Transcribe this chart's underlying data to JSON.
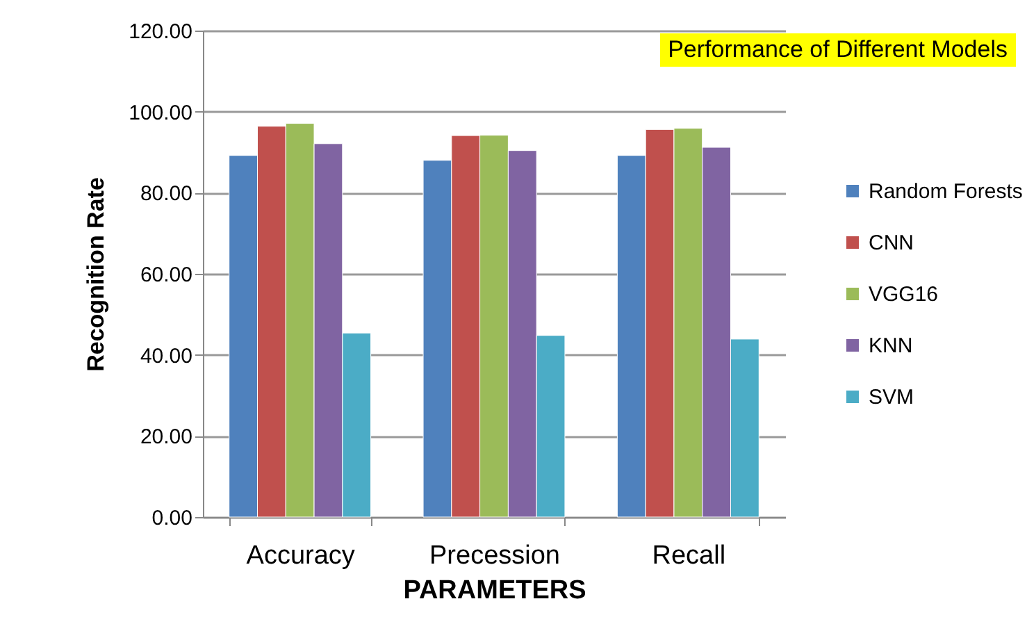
{
  "chart_data": {
    "type": "bar",
    "title": "Performance of Different Models",
    "xlabel": "PARAMETERS",
    "ylabel": "Recognition Rate",
    "categories": [
      "Accuracy",
      "Precession",
      "Recall"
    ],
    "series": [
      {
        "name": "Random Forests",
        "color": "#4f81bd",
        "values": [
          89.2,
          88.0,
          89.2
        ]
      },
      {
        "name": "CNN",
        "color": "#c0504d",
        "values": [
          96.4,
          94.1,
          95.6
        ]
      },
      {
        "name": "VGG16",
        "color": "#9bbb59",
        "values": [
          97.1,
          94.2,
          95.9
        ]
      },
      {
        "name": "KNN",
        "color": "#8064a2",
        "values": [
          92.1,
          90.4,
          91.2
        ]
      },
      {
        "name": "SVM",
        "color": "#4bacc6",
        "values": [
          45.4,
          44.8,
          43.9
        ]
      }
    ],
    "ylim": [
      0,
      120
    ],
    "yticks": [
      {
        "value": 0,
        "label": "0.00"
      },
      {
        "value": 20,
        "label": "20.00"
      },
      {
        "value": 40,
        "label": "40.00"
      },
      {
        "value": 60,
        "label": "60.00"
      },
      {
        "value": 80,
        "label": "80.00"
      },
      {
        "value": 100,
        "label": "100.00"
      },
      {
        "value": 120,
        "label": "120.00"
      }
    ],
    "grid": "y",
    "legend": "right"
  }
}
